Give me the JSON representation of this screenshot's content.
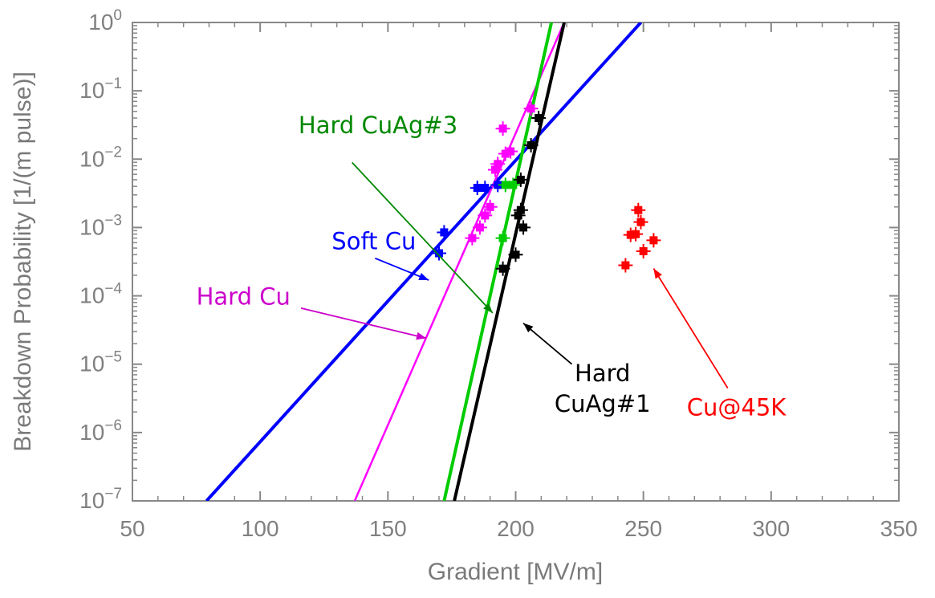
{
  "chart_data": {
    "type": "scatter",
    "title": "",
    "xlabel": "Gradient  [MV/m]",
    "ylabel": "Breakdown Probability [1/(m pulse)]",
    "xlim": [
      50,
      350
    ],
    "ylim_log10": [
      -7,
      0
    ],
    "x_ticks": [
      {
        "value": 50,
        "label": "50"
      },
      {
        "value": 100,
        "label": "100"
      },
      {
        "value": 150,
        "label": "150"
      },
      {
        "value": 200,
        "label": "200"
      },
      {
        "value": 250,
        "label": "250"
      },
      {
        "value": 300,
        "label": "300"
      },
      {
        "value": 350,
        "label": "350"
      }
    ],
    "y_ticks": [
      {
        "exp": 0,
        "base": "10",
        "sup": "0"
      },
      {
        "exp": -1,
        "base": "10",
        "sup": "−1"
      },
      {
        "exp": -2,
        "base": "10",
        "sup": "−2"
      },
      {
        "exp": -3,
        "base": "10",
        "sup": "−3"
      },
      {
        "exp": -4,
        "base": "10",
        "sup": "−4"
      },
      {
        "exp": -5,
        "base": "10",
        "sup": "−5"
      },
      {
        "exp": -6,
        "base": "10",
        "sup": "−6"
      },
      {
        "exp": -7,
        "base": "10",
        "sup": "−7"
      }
    ],
    "series": [
      {
        "name": "Soft Cu",
        "color": "#0000ff",
        "points": [
          [
            170,
            0.00042
          ],
          [
            172,
            0.00085
          ],
          [
            185,
            0.0038
          ],
          [
            188,
            0.0038
          ],
          [
            193,
            0.0042
          ]
        ],
        "fit": [
          [
            79,
            1e-07
          ],
          [
            249,
            1
          ]
        ]
      },
      {
        "name": "Hard Cu",
        "color": "#ff00ff",
        "points": [
          [
            183,
            0.0007
          ],
          [
            186,
            0.001
          ],
          [
            188,
            0.0015
          ],
          [
            190,
            0.002
          ],
          [
            192,
            0.007
          ],
          [
            193,
            0.0085
          ],
          [
            195,
            0.028
          ],
          [
            196,
            0.012
          ],
          [
            198,
            0.013
          ],
          [
            206,
            0.055
          ]
        ],
        "fit": [
          [
            137,
            1e-07
          ],
          [
            219,
            1
          ]
        ]
      },
      {
        "name": "Hard CuAg#3",
        "color": "#00cc00",
        "points": [
          [
            195,
            0.0007
          ],
          [
            196,
            0.0042
          ],
          [
            199,
            0.0042
          ]
        ],
        "fit": [
          [
            172,
            1e-07
          ],
          [
            214,
            1
          ]
        ]
      },
      {
        "name": "Hard CuAg#1",
        "color": "#000000",
        "points": [
          [
            195,
            0.00025
          ],
          [
            200,
            0.0004
          ],
          [
            201,
            0.0015
          ],
          [
            202,
            0.0018
          ],
          [
            202,
            0.005
          ],
          [
            203,
            0.001
          ],
          [
            206,
            0.016
          ],
          [
            209,
            0.04
          ]
        ],
        "fit": [
          [
            176,
            1e-07
          ],
          [
            219,
            1
          ]
        ]
      },
      {
        "name": "Cu@45K",
        "color": "#ff0000",
        "points": [
          [
            243,
            0.00028
          ],
          [
            245,
            0.00078
          ],
          [
            247,
            0.0008
          ],
          [
            248,
            0.0018
          ],
          [
            249,
            0.0012
          ],
          [
            250,
            0.00045
          ],
          [
            254,
            0.00065
          ]
        ],
        "fit": null
      }
    ],
    "annotations": [
      {
        "lines": [
          "Hard CuAg#3"
        ],
        "color": "#008800",
        "anchor": "start",
        "text_at": [
          115,
          -1.62
        ],
        "arrow_from": [
          136,
          -2.05
        ],
        "arrow_to": [
          191,
          -4.25
        ]
      },
      {
        "lines": [
          "Soft Cu"
        ],
        "color": "#0000ff",
        "anchor": "start",
        "text_at": [
          128,
          -3.32
        ],
        "arrow_from": [
          145,
          -3.45
        ],
        "arrow_to": [
          166,
          -3.77
        ]
      },
      {
        "lines": [
          "Hard Cu"
        ],
        "color": "#cc00cc",
        "anchor": "start",
        "text_at": [
          75,
          -4.13
        ],
        "arrow_from": [
          116,
          -4.18
        ],
        "arrow_to": [
          165,
          -4.62
        ]
      },
      {
        "lines": [
          "Hard",
          "CuAg#1"
        ],
        "color": "#000000",
        "anchor": "middle",
        "text_at": [
          234,
          -5.25
        ],
        "arrow_from": [
          222,
          -5.0
        ],
        "arrow_to": [
          203,
          -4.4
        ]
      },
      {
        "lines": [
          "Cu@45K"
        ],
        "color": "#ff0000",
        "anchor": "start",
        "text_at": [
          267,
          -5.75
        ],
        "arrow_from": [
          283,
          -5.35
        ],
        "arrow_to": [
          254,
          -3.6
        ]
      }
    ]
  }
}
